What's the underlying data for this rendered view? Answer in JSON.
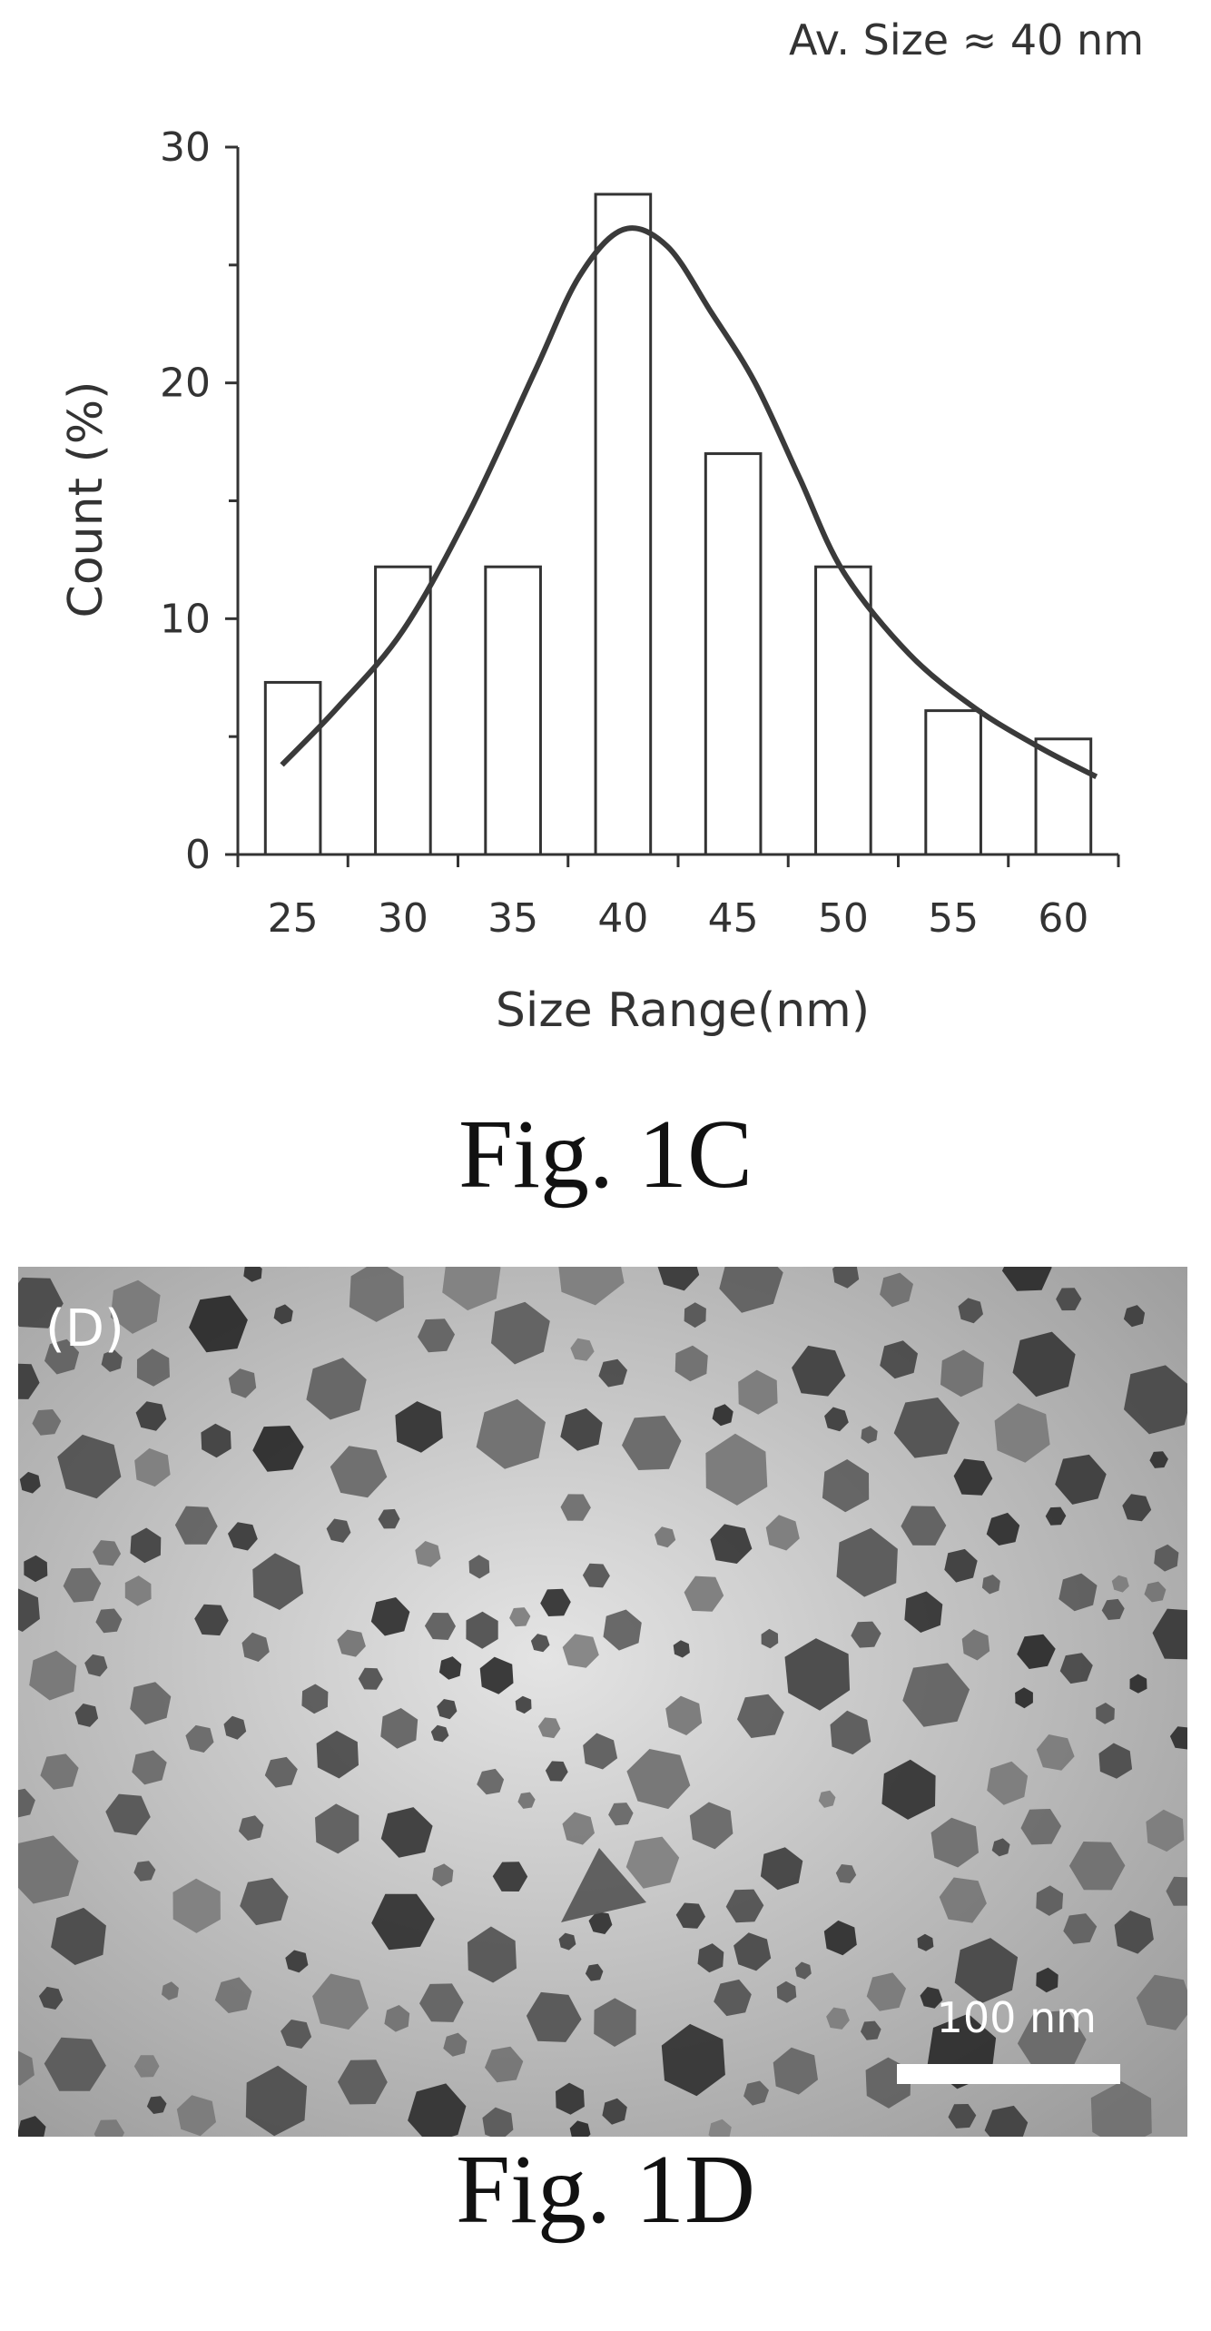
{
  "chart_data": {
    "type": "bar",
    "annotation": "Av. Size ≈ 40 nm",
    "xlabel": "Size Range(nm)",
    "ylabel": "Count (%)",
    "categories": [
      "25",
      "30",
      "35",
      "40",
      "45",
      "50",
      "55",
      "60"
    ],
    "values": [
      7.3,
      12.2,
      12.2,
      28.0,
      17.0,
      12.2,
      6.1,
      4.9
    ],
    "ylim": [
      0,
      30
    ],
    "yticks": [
      "0",
      "10",
      "20",
      "30"
    ],
    "fit_curve": {
      "type": "line",
      "x": [
        24.5,
        27,
        30,
        33,
        36,
        38,
        40,
        42,
        44,
        46,
        48,
        50,
        53,
        56,
        59,
        61.5
      ],
      "y": [
        3.8,
        6.2,
        9.5,
        14.5,
        20.5,
        24.5,
        26.5,
        25.8,
        23.0,
        20.0,
        16.0,
        12.0,
        8.5,
        6.2,
        4.5,
        3.3
      ]
    },
    "bar_color": "#ffffff",
    "line_color": "#3a3a3a",
    "grid": false
  },
  "captions": {
    "fig_c": "Fig. 1C",
    "fig_d": "Fig. 1D"
  },
  "tem_image": {
    "panel_label": "(D)",
    "scale_label": "100 nm"
  }
}
